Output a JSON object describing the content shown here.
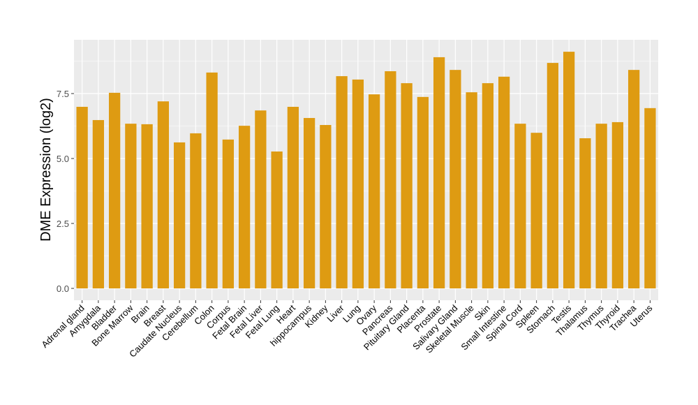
{
  "chart_data": {
    "type": "bar",
    "title": "",
    "xlabel": "",
    "ylabel": "DME Expression (log2)",
    "ylim": [
      -0.4,
      9.6
    ],
    "yticks": [
      0,
      2.5,
      5,
      7.5
    ],
    "ytick_labels": [
      "0.0",
      "2.5",
      "5.0",
      "7.5"
    ],
    "grid": true,
    "bar_color": "#DE9B12",
    "panel_color": "#EBEBEB",
    "categories": [
      "Adrenal gland",
      "Amygdala",
      "Bladder",
      "Bone Marrow",
      "Brain",
      "Breast",
      "Caudate Nucleus",
      "Cerebellum",
      "Colon",
      "Corpus",
      "Fetal Brain",
      "Fetal Liver",
      "Fetal Lung",
      "Heart",
      "hippocampus",
      "Kidney",
      "Liver",
      "Lung",
      "Ovary",
      "Pancreas",
      "Pituitary Gland",
      "Placenta",
      "Prostate",
      "Salivary Gland",
      "Skeletal Muscle",
      "Skin",
      "Small Intestine",
      "Spinal Cord",
      "Spleen",
      "Stomach",
      "Testis",
      "Thalamus",
      "Thymus",
      "Thyroid",
      "Trachea",
      "Uterus"
    ],
    "values": [
      6.99,
      6.48,
      7.53,
      6.34,
      6.32,
      7.2,
      5.62,
      5.97,
      8.31,
      5.73,
      6.26,
      6.85,
      5.27,
      6.99,
      6.56,
      6.29,
      8.17,
      8.04,
      7.47,
      8.36,
      7.9,
      7.37,
      8.9,
      8.41,
      7.55,
      7.9,
      8.15,
      6.34,
      5.99,
      8.68,
      9.11,
      5.78,
      6.34,
      6.4,
      8.41,
      6.94
    ]
  }
}
